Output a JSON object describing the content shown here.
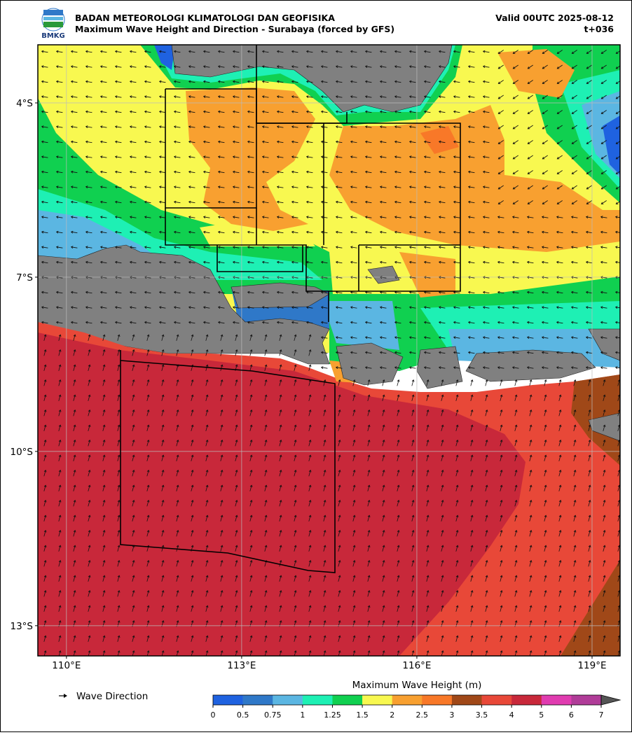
{
  "header": {
    "logo_text": "BMKG",
    "title": "BADAN METEOROLOGI KLIMATOLOGI DAN GEOFISIKA",
    "subtitle": "Maximum Wave Height and Direction - Surabaya (forced by GFS)",
    "valid": "Valid 00UTC 2025-08-12",
    "lead": "t+036"
  },
  "map": {
    "lonlim": [
      109.51,
      119.48
    ],
    "latlim": [
      -13.52,
      -3.0
    ],
    "lonticks": [
      {
        "value": 110,
        "label": "110°E"
      },
      {
        "value": 113,
        "label": "113°E"
      },
      {
        "value": 116,
        "label": "116°E"
      },
      {
        "value": 119,
        "label": "119°E"
      }
    ],
    "latticks": [
      {
        "value": -4,
        "label": "4°S"
      },
      {
        "value": -7,
        "label": "7°S"
      },
      {
        "value": -10,
        "label": "10°S"
      },
      {
        "value": -13,
        "label": "13°S"
      }
    ]
  },
  "legend": {
    "arrow_label": "Wave Direction"
  },
  "colorbar": {
    "title": "Maximum Wave Height (m)",
    "ticks": [
      0,
      0.5,
      0.75,
      1,
      1.25,
      1.5,
      2,
      2.5,
      3,
      3.5,
      4,
      5,
      6,
      7
    ],
    "colors": [
      "#1f62e0",
      "#2f78c8",
      "#5bb6e2",
      "#1ef0b4",
      "#10d050",
      "#f8f850",
      "#f8a030",
      "#f87828",
      "#a04818",
      "#e84838",
      "#c8283a",
      "#e03cb0",
      "#b03c98"
    ],
    "over_color": "#555555"
  }
}
